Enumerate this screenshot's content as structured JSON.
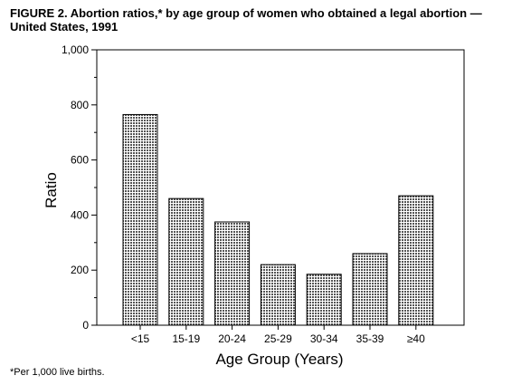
{
  "chart_data": {
    "type": "bar",
    "title": "FIGURE 2. Abortion ratios,* by age group of women who obtained a legal abortion — United States, 1991",
    "xlabel": "Age Group (Years)",
    "ylabel": "Ratio",
    "categories": [
      "<15",
      "15-19",
      "20-24",
      "25-29",
      "30-34",
      "35-39",
      "≥40"
    ],
    "values": [
      765,
      460,
      375,
      220,
      185,
      260,
      470
    ],
    "ylim": [
      0,
      1000
    ],
    "yticks": [
      0,
      200,
      400,
      600,
      800,
      1000
    ],
    "ytick_labels": [
      "0",
      "200",
      "400",
      "600",
      "800",
      "1,000"
    ],
    "grid": false,
    "bar_fill": "#8a8a8a"
  },
  "footnote": "*Per 1,000 live births."
}
